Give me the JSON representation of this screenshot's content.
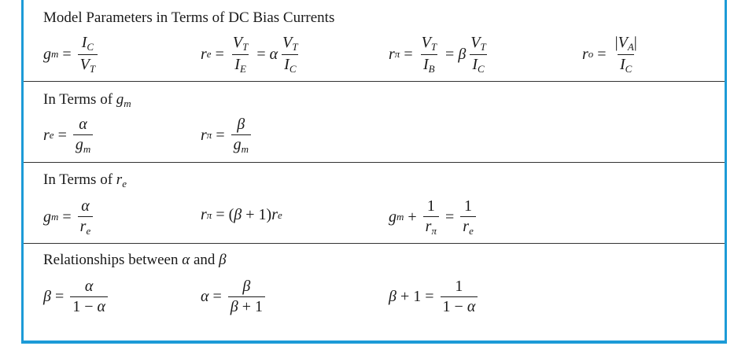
{
  "table": {
    "sections": [
      {
        "title": "Model Parameters in Terms of DC Bias Currents",
        "equations": [
          "g_m = I_C / V_T",
          "r_e = V_T / I_E = α V_T / I_C",
          "r_π = V_T / I_B = β V_T / I_C",
          "r_o = |V_A| / I_C"
        ]
      },
      {
        "title_text": "In Terms of ",
        "title_symbol": "g",
        "title_sub": "m",
        "equations": [
          "r_e = α / g_m",
          "r_π = β / g_m"
        ]
      },
      {
        "title_text": "In Terms of ",
        "title_symbol": "r",
        "title_sub": "e",
        "equations": [
          "g_m = α / r_e",
          "r_π = (β + 1) r_e",
          "g_m + 1/r_π = 1/r_e"
        ]
      },
      {
        "title_text": "Relationships between ",
        "title_alpha": "α",
        "title_and": " and ",
        "title_beta": "β",
        "equations": [
          "β = α / (1 − α)",
          "α = β / (β + 1)",
          "β + 1 = 1 / (1 − α)"
        ]
      }
    ],
    "border_color": "#1c9bd7"
  }
}
